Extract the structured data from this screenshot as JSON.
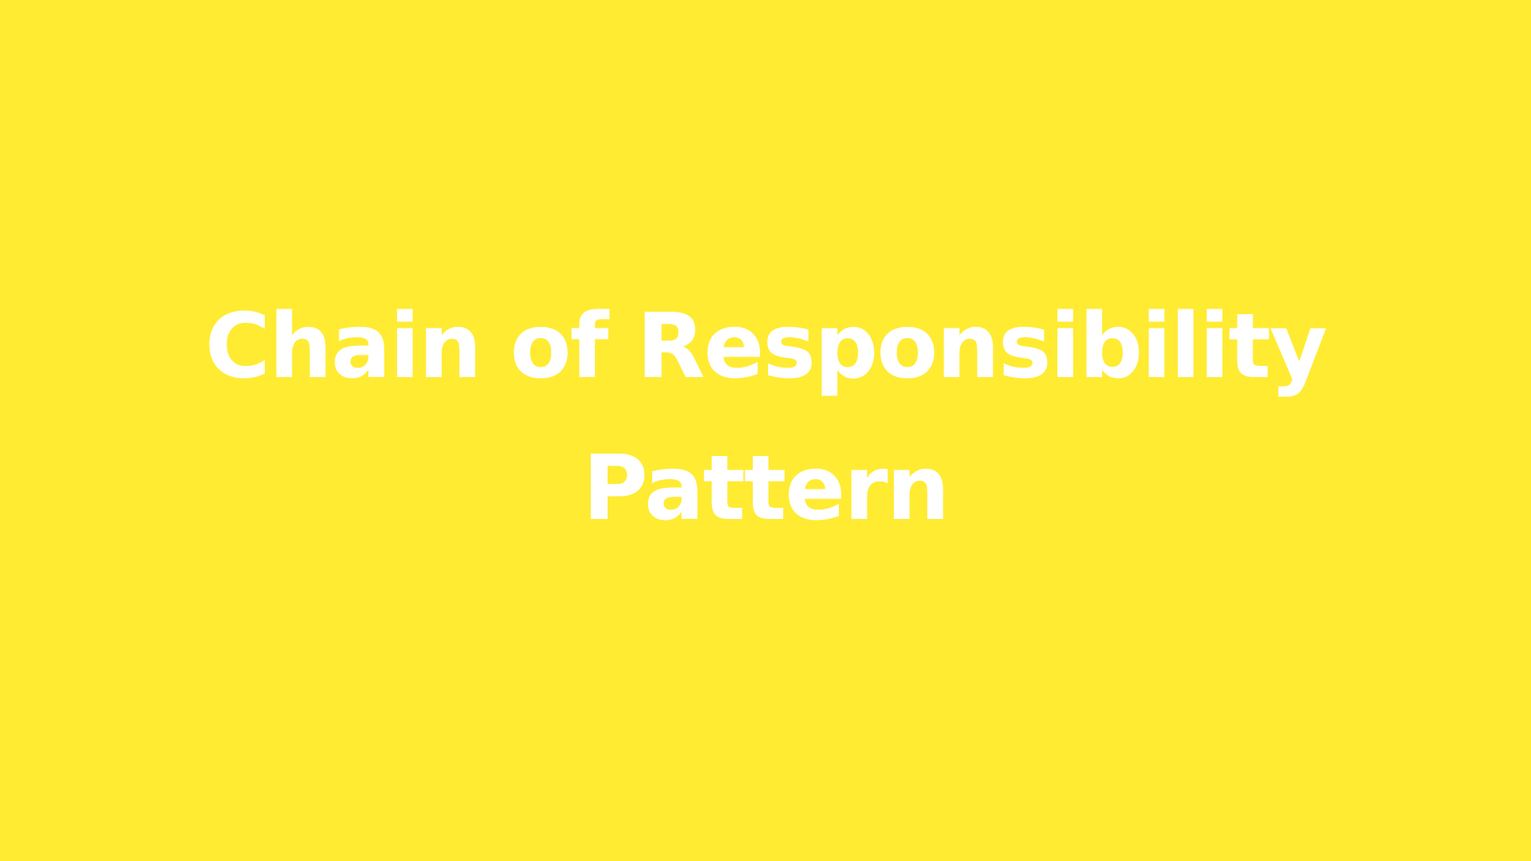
{
  "slide": {
    "background_color": "#FFEB32",
    "text_color": "#FFFFFF",
    "title_line_1": "Chain of Responsibility",
    "title_line_2": "Pattern"
  }
}
